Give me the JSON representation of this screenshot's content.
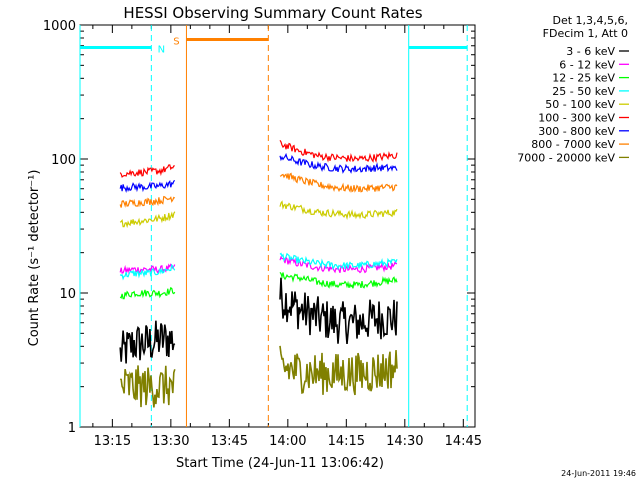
{
  "chart_data": {
    "type": "line",
    "title": "HESSI Observing Summary Count Rates",
    "xlabel": "Start Time (24-Jun-11 13:06:42)",
    "ylabel": "Count Rate (s⁻¹ detector⁻¹)",
    "y_scale": "log",
    "ylim": [
      1,
      1000
    ],
    "xlim": [
      "13:06:42",
      "14:48:00"
    ],
    "x_ticks": [
      "13:15",
      "13:30",
      "13:45",
      "14:00",
      "14:15",
      "14:30",
      "14:45"
    ],
    "y_ticks": [
      "1",
      "10",
      "100",
      "1000"
    ],
    "legend_title": [
      "Det 1,3,4,5,6,",
      "FDecim 1, Att 0"
    ],
    "legend_position": "outside-top-right",
    "annotations": [
      {
        "text": "N",
        "color": "#00ffff"
      },
      {
        "text": "S",
        "color": "#ff8000"
      }
    ],
    "intervals": {
      "night": {
        "color": "#00ffff",
        "bars": [
          [
            "13:06:42",
            "13:25:00"
          ],
          [
            "14:31:00",
            "14:46:00"
          ]
        ],
        "level": 680,
        "bounds": [
          "13:06:42",
          "13:25:00",
          "14:31:00",
          "14:46:00"
        ]
      },
      "saa": {
        "color": "#ff8000",
        "bars": [
          [
            "13:34:00",
            "13:55:00"
          ]
        ],
        "level": 780,
        "bounds": [
          "13:34:00",
          "13:55:00"
        ]
      }
    },
    "segments": [
      [
        "13:17:00",
        "13:31:00"
      ],
      [
        "13:58:00",
        "14:28:00"
      ]
    ],
    "series": [
      {
        "name": "3 - 6 keV",
        "color": "#000000",
        "values": [
          [
            3.5,
            4.2,
            4.2,
            4.5,
            4.5
          ],
          [
            9.5,
            7.5,
            6.5,
            6.0,
            6.0,
            6.5,
            6.5
          ]
        ]
      },
      {
        "name": "6 - 12 keV",
        "color": "#ff00ff",
        "values": [
          [
            14.5,
            15.0,
            15.0,
            15.0,
            15.5
          ],
          [
            18.0,
            16.5,
            15.5,
            15.0,
            15.0,
            15.5,
            16.0
          ]
        ]
      },
      {
        "name": "12 - 25 keV",
        "color": "#00ff00",
        "values": [
          [
            9.5,
            10.0,
            10.0,
            10.0,
            10.5
          ],
          [
            13.5,
            13.0,
            12.0,
            11.5,
            11.5,
            12.0,
            12.5
          ]
        ]
      },
      {
        "name": "25 - 50 keV",
        "color": "#00ffff",
        "values": [
          [
            13.5,
            14.0,
            14.0,
            14.5,
            15.5
          ],
          [
            19.0,
            17.5,
            16.5,
            16.0,
            16.0,
            16.5,
            17.0
          ]
        ]
      },
      {
        "name": "50 - 100 keV",
        "color": "#cccc00",
        "values": [
          [
            33,
            34,
            35,
            36,
            39
          ],
          [
            46,
            43,
            40,
            39,
            38,
            39,
            40
          ]
        ]
      },
      {
        "name": "100 - 300 keV",
        "color": "#ff0000",
        "values": [
          [
            78,
            79,
            80,
            82,
            88
          ],
          [
            130,
            115,
            105,
            102,
            100,
            103,
            107
          ]
        ]
      },
      {
        "name": "300 - 800 keV",
        "color": "#0000ff",
        "values": [
          [
            61,
            62,
            62,
            63,
            66
          ],
          [
            105,
            95,
            88,
            85,
            84,
            86,
            85
          ]
        ]
      },
      {
        "name": "800 - 7000 keV",
        "color": "#ff8000",
        "values": [
          [
            46,
            47,
            48,
            49,
            52
          ],
          [
            78,
            70,
            64,
            61,
            60,
            61,
            62
          ]
        ]
      },
      {
        "name": "7000 - 20000 keV",
        "color": "#808000",
        "values": [
          [
            2.0,
            2.0,
            2.0,
            2.0,
            2.0
          ],
          [
            2.8,
            2.6,
            2.5,
            2.5,
            2.5,
            2.6,
            2.8
          ]
        ]
      }
    ],
    "footer": "24-Jun-2011 19:46"
  }
}
